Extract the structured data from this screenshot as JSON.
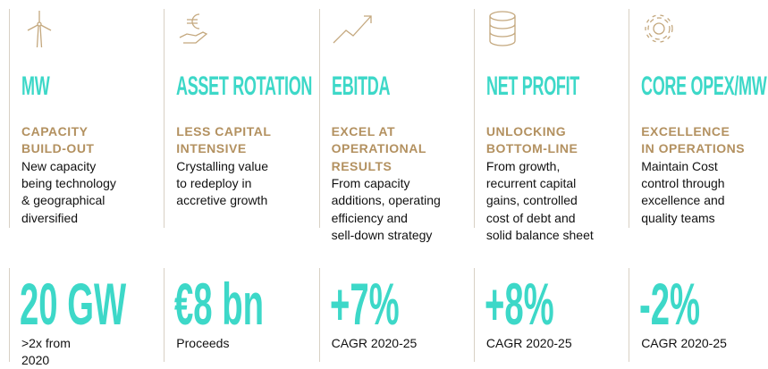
{
  "columns": [
    {
      "heading": "MW",
      "subheading": [
        "CAPACITY",
        "BUILD-OUT"
      ],
      "body": [
        "New capacity",
        "being technology",
        "& geographical",
        "diversified"
      ],
      "figure": "20 GW",
      "caption": [
        ">2x from",
        "2020"
      ]
    },
    {
      "heading": "ASSET ROTATION",
      "subheading": [
        "LESS CAPITAL",
        "INTENSIVE"
      ],
      "body": [
        "Crystalling value",
        "to redeploy in",
        "accretive growth"
      ],
      "figure": "€8 bn",
      "caption": [
        "Proceeds"
      ]
    },
    {
      "heading": "EBITDA",
      "subheading": [
        "EXCEL AT",
        "OPERATIONAL",
        "RESULTS"
      ],
      "body": [
        "From capacity",
        "additions, operating",
        "efficiency and",
        "sell-down strategy"
      ],
      "figure": "+7%",
      "caption": [
        "CAGR 2020-25"
      ]
    },
    {
      "heading": "NET PROFIT",
      "subheading": [
        "UNLOCKING",
        "BOTTOM-LINE"
      ],
      "body": [
        "From growth,",
        "recurrent capital",
        "gains, controlled",
        "cost of debt and",
        "solid balance sheet"
      ],
      "figure": "+8%",
      "caption": [
        "CAGR 2020-25"
      ]
    },
    {
      "heading": "CORE OPEX/MW",
      "subheading": [
        "EXCELLENCE",
        "IN OPERATIONS"
      ],
      "body": [
        "Maintain Cost",
        "control through",
        "excellence and",
        "quality teams"
      ],
      "figure": "-2%",
      "caption": [
        "CAGR 2020-25"
      ]
    }
  ]
}
